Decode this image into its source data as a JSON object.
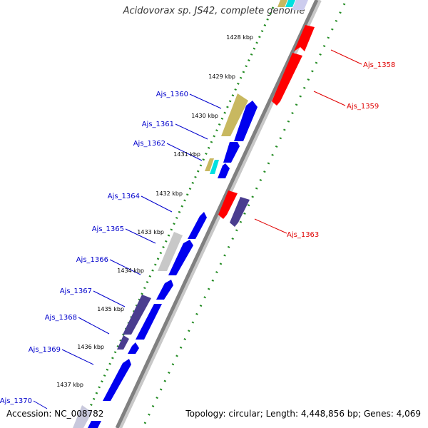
{
  "title": "Acidovorax sp. JS42, complete genome",
  "footer": {
    "accession": "Accession: NC_008782",
    "topology": "Topology: circular; Length: 4,448,856 bp; Genes: 4,069"
  },
  "colors": {
    "backbone": "#808080",
    "forward_label": "#0000cc",
    "reverse_label": "#e00000",
    "tick_dots": "#228b22",
    "forward_gene": "#0000ee",
    "reverse_gene": "#ff0000",
    "other_gene": "#4a3d8f"
  },
  "ticks": [
    "1428 kbp",
    "1429 kbp",
    "1430 kbp",
    "1431 kbp",
    "1432 kbp",
    "1433 kbp",
    "1434 kbp",
    "1435 kbp",
    "1436 kbp",
    "1437 kbp"
  ],
  "gene_labels": [
    {
      "text": "Ajs_1358",
      "strand": "reverse"
    },
    {
      "text": "Ajs_1359",
      "strand": "reverse"
    },
    {
      "text": "Ajs_1360",
      "strand": "forward"
    },
    {
      "text": "Ajs_1361",
      "strand": "forward"
    },
    {
      "text": "Ajs_1362",
      "strand": "forward"
    },
    {
      "text": "Ajs_1363",
      "strand": "reverse"
    },
    {
      "text": "Ajs_1364",
      "strand": "forward"
    },
    {
      "text": "Ajs_1365",
      "strand": "forward"
    },
    {
      "text": "Ajs_1366",
      "strand": "forward"
    },
    {
      "text": "Ajs_1367",
      "strand": "forward"
    },
    {
      "text": "Ajs_1368",
      "strand": "forward"
    },
    {
      "text": "Ajs_1369",
      "strand": "forward"
    },
    {
      "text": "Ajs_1370",
      "strand": "forward"
    }
  ]
}
